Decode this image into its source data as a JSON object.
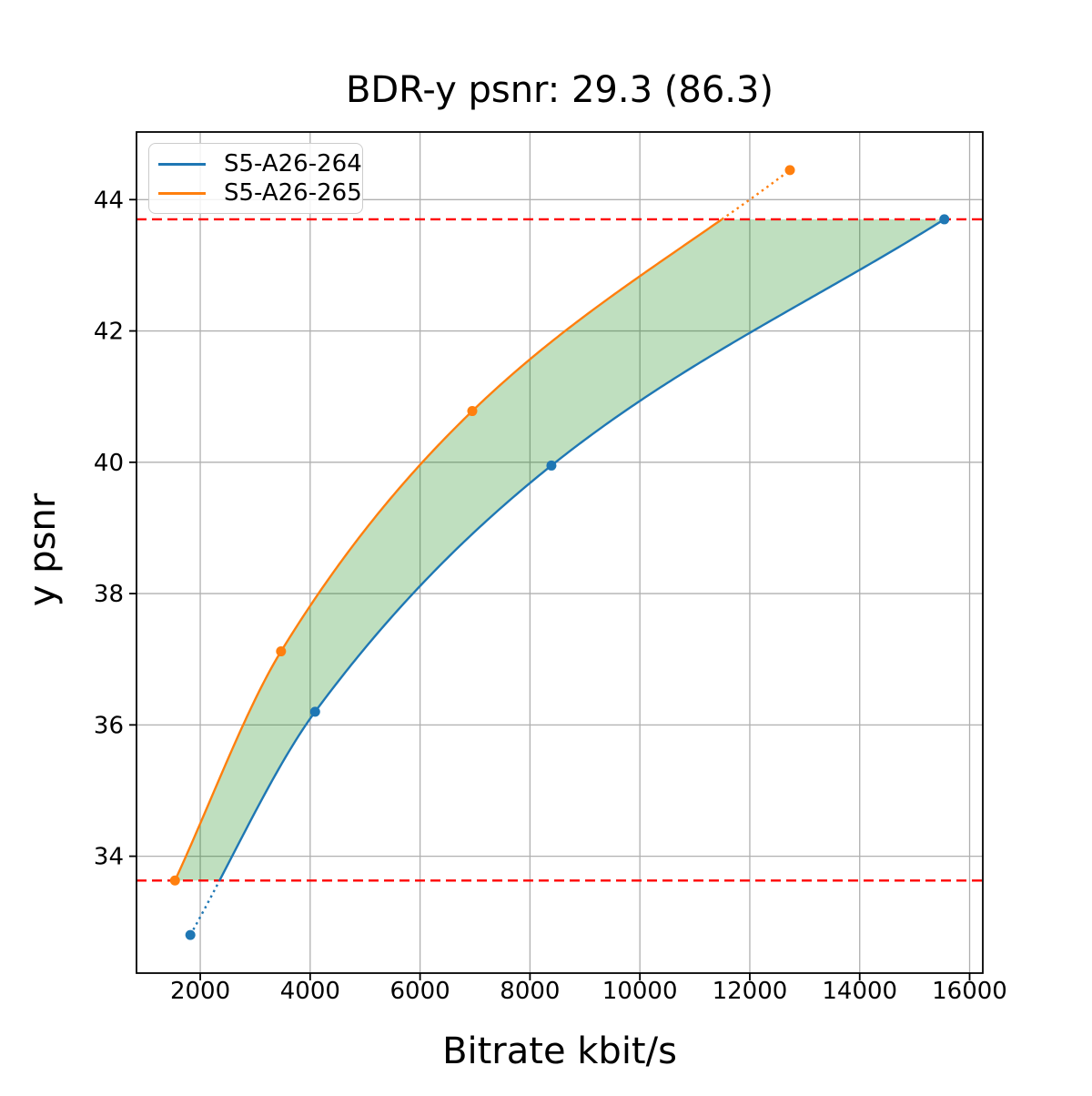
{
  "chart_data": {
    "type": "line",
    "title": "BDR-y psnr: 29.3 (86.3)",
    "xlabel": "Bitrate kbit/s",
    "ylabel": "y psnr",
    "x_ticks": [
      2000,
      4000,
      6000,
      8000,
      10000,
      12000,
      14000,
      16000
    ],
    "y_ticks": [
      34,
      36,
      38,
      40,
      42,
      44
    ],
    "xlim": [
      840,
      16240
    ],
    "ylim": [
      32.22,
      45.03
    ],
    "grid": true,
    "grid_color": "#b0b0b0",
    "interpolation": "pchip",
    "legend": {
      "position": "upper-left",
      "entries": [
        "S5-A26-264",
        "S5-A26-265"
      ]
    },
    "series": [
      {
        "name": "S5-A26-264",
        "color": "#1f77b4",
        "marker": "circle",
        "points": [
          [
            1820,
            32.8
          ],
          [
            4090,
            36.2
          ],
          [
            8390,
            39.95
          ],
          [
            15540,
            43.7
          ]
        ]
      },
      {
        "name": "S5-A26-265",
        "color": "#ff7f0e",
        "marker": "circle",
        "points": [
          [
            1540,
            33.63
          ],
          [
            3470,
            37.12
          ],
          [
            6950,
            40.78
          ],
          [
            12730,
            44.45
          ]
        ]
      }
    ],
    "bd_interval_lines": {
      "color": "#ff0000",
      "style": "dashed",
      "y_values": [
        43.7,
        33.63
      ]
    },
    "fill_between": {
      "color": "#008000",
      "opacity": 0.25
    }
  }
}
